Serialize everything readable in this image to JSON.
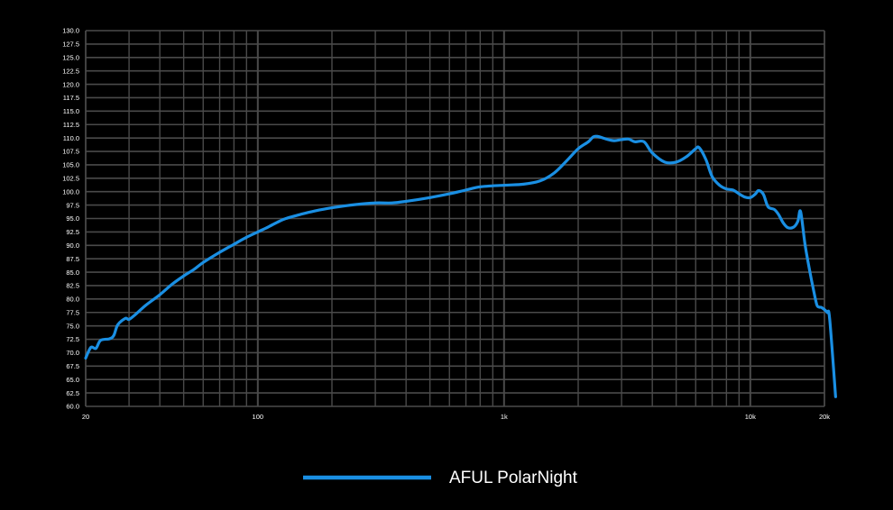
{
  "chart_data": {
    "type": "line",
    "title": "",
    "xlabel": "",
    "ylabel": "",
    "x_scale": "log",
    "xlim": [
      20,
      20000
    ],
    "ylim": [
      60,
      130
    ],
    "grid": true,
    "legend_position": "bottom-center",
    "x_ticks": [
      {
        "value": 20,
        "label": "20"
      },
      {
        "value": 100,
        "label": "100"
      },
      {
        "value": 1000,
        "label": "1k"
      },
      {
        "value": 10000,
        "label": "10k"
      },
      {
        "value": 20000,
        "label": "20k"
      }
    ],
    "y_ticks": [
      "60.0",
      "62.5",
      "65.0",
      "67.5",
      "70.0",
      "72.5",
      "75.0",
      "77.5",
      "80.0",
      "82.5",
      "85.0",
      "87.5",
      "90.0",
      "92.5",
      "95.0",
      "97.5",
      "100.0",
      "102.5",
      "105.0",
      "107.5",
      "110.0",
      "112.5",
      "115.0",
      "117.5",
      "120.0",
      "122.5",
      "125.0",
      "127.5",
      "130.0"
    ],
    "colors": {
      "background": "#000000",
      "grid": "#4a4a4a",
      "text": "#ffffff",
      "series": "#1a8fe3"
    },
    "series": [
      {
        "name": "AFUL PolarNight",
        "color": "#1a8fe3",
        "points": [
          [
            20,
            69.0
          ],
          [
            21,
            71.0
          ],
          [
            22,
            70.8
          ],
          [
            23,
            72.3
          ],
          [
            25,
            72.6
          ],
          [
            26,
            73.2
          ],
          [
            27,
            75.2
          ],
          [
            29,
            76.4
          ],
          [
            30,
            76.2
          ],
          [
            32,
            77.2
          ],
          [
            35,
            78.8
          ],
          [
            40,
            80.8
          ],
          [
            45,
            82.8
          ],
          [
            50,
            84.3
          ],
          [
            55,
            85.5
          ],
          [
            60,
            86.8
          ],
          [
            70,
            88.7
          ],
          [
            80,
            90.2
          ],
          [
            90,
            91.5
          ],
          [
            100,
            92.5
          ],
          [
            110,
            93.4
          ],
          [
            120,
            94.3
          ],
          [
            130,
            95.0
          ],
          [
            150,
            95.8
          ],
          [
            170,
            96.4
          ],
          [
            200,
            97.0
          ],
          [
            250,
            97.6
          ],
          [
            300,
            97.9
          ],
          [
            350,
            97.9
          ],
          [
            400,
            98.2
          ],
          [
            500,
            98.9
          ],
          [
            600,
            99.6
          ],
          [
            700,
            100.3
          ],
          [
            800,
            100.9
          ],
          [
            1000,
            101.2
          ],
          [
            1200,
            101.4
          ],
          [
            1400,
            102.0
          ],
          [
            1600,
            103.5
          ],
          [
            1800,
            105.8
          ],
          [
            2000,
            108.0
          ],
          [
            2200,
            109.3
          ],
          [
            2300,
            110.2
          ],
          [
            2400,
            110.3
          ],
          [
            2600,
            109.8
          ],
          [
            2800,
            109.5
          ],
          [
            3000,
            109.7
          ],
          [
            3200,
            109.8
          ],
          [
            3400,
            109.3
          ],
          [
            3700,
            109.3
          ],
          [
            4000,
            107.2
          ],
          [
            4500,
            105.5
          ],
          [
            5000,
            105.5
          ],
          [
            5500,
            106.5
          ],
          [
            6000,
            108.0
          ],
          [
            6200,
            108.2
          ],
          [
            6600,
            106.0
          ],
          [
            7000,
            102.8
          ],
          [
            7500,
            101.2
          ],
          [
            8000,
            100.5
          ],
          [
            8500,
            100.3
          ],
          [
            9000,
            99.6
          ],
          [
            9500,
            99.0
          ],
          [
            10000,
            98.9
          ],
          [
            10500,
            99.6
          ],
          [
            10800,
            100.2
          ],
          [
            11300,
            99.5
          ],
          [
            11800,
            97.2
          ],
          [
            12500,
            96.7
          ],
          [
            13000,
            95.8
          ],
          [
            13600,
            94.2
          ],
          [
            14200,
            93.3
          ],
          [
            15000,
            93.4
          ],
          [
            15600,
            94.5
          ],
          [
            16000,
            96.3
          ],
          [
            16700,
            90.0
          ],
          [
            17500,
            84.8
          ],
          [
            18000,
            82.0
          ],
          [
            18600,
            79.0
          ],
          [
            19000,
            78.5
          ],
          [
            19500,
            78.4
          ],
          [
            20500,
            77.5
          ],
          [
            21000,
            76.3
          ],
          [
            22200,
            61.8
          ]
        ]
      }
    ]
  }
}
